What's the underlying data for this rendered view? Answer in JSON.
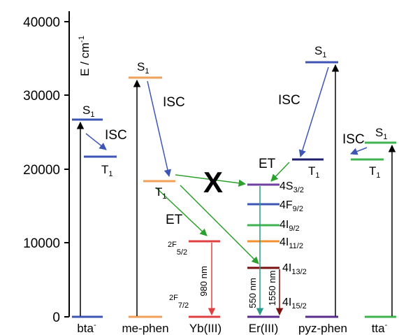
{
  "axis": {
    "label_main": "E / cm",
    "label_sup": "-1",
    "ticks": [
      {
        "value": 0,
        "label": "0"
      },
      {
        "value": 10000,
        "label": "10000"
      },
      {
        "value": 20000,
        "label": "20000"
      },
      {
        "value": 30000,
        "label": "30000"
      },
      {
        "value": 40000,
        "label": "40000"
      }
    ]
  },
  "columns": [
    {
      "key": "bta",
      "label": "bta",
      "sup": "-"
    },
    {
      "key": "mephen",
      "label": "me-phen",
      "sup": ""
    },
    {
      "key": "yb",
      "label": "Yb(III)",
      "sup": ""
    },
    {
      "key": "er",
      "label": "Er(III)",
      "sup": ""
    },
    {
      "key": "pyzphen",
      "label": "pyz-phen",
      "sup": ""
    },
    {
      "key": "tta",
      "label": "tta",
      "sup": "-"
    }
  ],
  "levels": [
    {
      "key": "bta_s0",
      "energy": 0,
      "color": "#3d55b4"
    },
    {
      "key": "bta_s1",
      "energy": 26800,
      "color": "#3d55b4",
      "label": "S",
      "sub": "1"
    },
    {
      "key": "bta_t1",
      "energy": 21800,
      "color": "#3d55b4",
      "label": "T",
      "sub": "1"
    },
    {
      "key": "mephen_s0",
      "energy": 0,
      "color": "#f0a05a"
    },
    {
      "key": "mephen_s1",
      "energy": 32300,
      "color": "#f0a05a",
      "label": "S",
      "sub": "1"
    },
    {
      "key": "mephen_t1",
      "energy": 18500,
      "color": "#f0a05a",
      "label": "T",
      "sub": "1"
    },
    {
      "key": "yb_g",
      "energy": 0,
      "color": "#e04040",
      "label": "2F",
      "sub": "7/2"
    },
    {
      "key": "yb_e",
      "energy": 10300,
      "color": "#e04040",
      "label": "2F",
      "sub": "5/2"
    },
    {
      "key": "er_15",
      "energy": 0,
      "color": "#5a2c8c",
      "label": "4I",
      "sub": "15/2"
    },
    {
      "key": "er_13",
      "energy": 6500,
      "color": "#7a1010",
      "label": "4I",
      "sub": "13/2"
    },
    {
      "key": "er_11",
      "energy": 10200,
      "color": "#f09030",
      "label": "4I",
      "sub": "11/2"
    },
    {
      "key": "er_9",
      "energy": 12400,
      "color": "#3fb34f",
      "label": "4I",
      "sub": "9/2"
    },
    {
      "key": "er_f9",
      "energy": 15200,
      "color": "#3d55b4",
      "label": "4F",
      "sub": "9/2"
    },
    {
      "key": "er_s3",
      "energy": 18200,
      "color": "#7040a0",
      "label": "4S",
      "sub": "3/2"
    },
    {
      "key": "pyz_s0",
      "energy": 0,
      "color": "#5a2c8c"
    },
    {
      "key": "pyz_s1",
      "energy": 34500,
      "color": "#3d55b4",
      "label": "S",
      "sub": "1"
    },
    {
      "key": "pyz_t1",
      "energy": 21300,
      "color": "#1f1f6e",
      "label": "T",
      "sub": "1"
    },
    {
      "key": "tta_s0",
      "energy": 0,
      "color": "#3fb34f"
    },
    {
      "key": "tta_s1",
      "energy": 23600,
      "color": "#3fb34f",
      "label": "S",
      "sub": "1"
    },
    {
      "key": "tta_t1",
      "energy": 21300,
      "color": "#3fb34f",
      "label": "T",
      "sub": "1"
    }
  ],
  "transitions": [
    {
      "from": "bta_s0",
      "to": "bta_s1",
      "kind": "absorption",
      "color": "#000000"
    },
    {
      "from": "bta_s1",
      "to": "bta_t1",
      "kind": "ISC",
      "label": "ISC",
      "color": "#3d55b4"
    },
    {
      "from": "mephen_s0",
      "to": "mephen_s1",
      "kind": "absorption",
      "color": "#000000"
    },
    {
      "from": "mephen_s1",
      "to": "mephen_t1",
      "kind": "ISC",
      "label": "ISC",
      "color": "#3d55b4"
    },
    {
      "from": "mephen_t1",
      "to": "yb_e",
      "kind": "ET",
      "label": "ET",
      "color": "#2ca02c"
    },
    {
      "from": "mephen_t1",
      "to": "er_s3",
      "kind": "ET",
      "label": "X",
      "color": "#2ca02c"
    },
    {
      "from": "mephen_t1",
      "to": "er_13",
      "kind": "ET",
      "color": "#2ca02c"
    },
    {
      "from": "yb_e",
      "to": "yb_g",
      "kind": "emission",
      "label": "980 nm",
      "color": "#e04040"
    },
    {
      "from": "er_s3",
      "to": "er_15",
      "kind": "emission",
      "label": "550 nm",
      "color": "#2a9a8a"
    },
    {
      "from": "er_13",
      "to": "er_15",
      "kind": "emission",
      "label": "1550 nm",
      "color": "#7a1010"
    },
    {
      "from": "pyz_s0",
      "to": "pyz_s1",
      "kind": "absorption",
      "color": "#000000"
    },
    {
      "from": "pyz_s1",
      "to": "pyz_t1",
      "kind": "ISC",
      "label": "ISC",
      "color": "#3d55b4"
    },
    {
      "from": "pyz_t1",
      "to": "er_s3",
      "kind": "ET",
      "label": "ET",
      "color": "#2ca02c"
    },
    {
      "from": "tta_s0",
      "to": "tta_s1",
      "kind": "absorption",
      "color": "#000000"
    },
    {
      "from": "tta_s1",
      "to": "tta_t1",
      "kind": "ISC",
      "label": "ISC",
      "color": "#3d55b4"
    }
  ]
}
